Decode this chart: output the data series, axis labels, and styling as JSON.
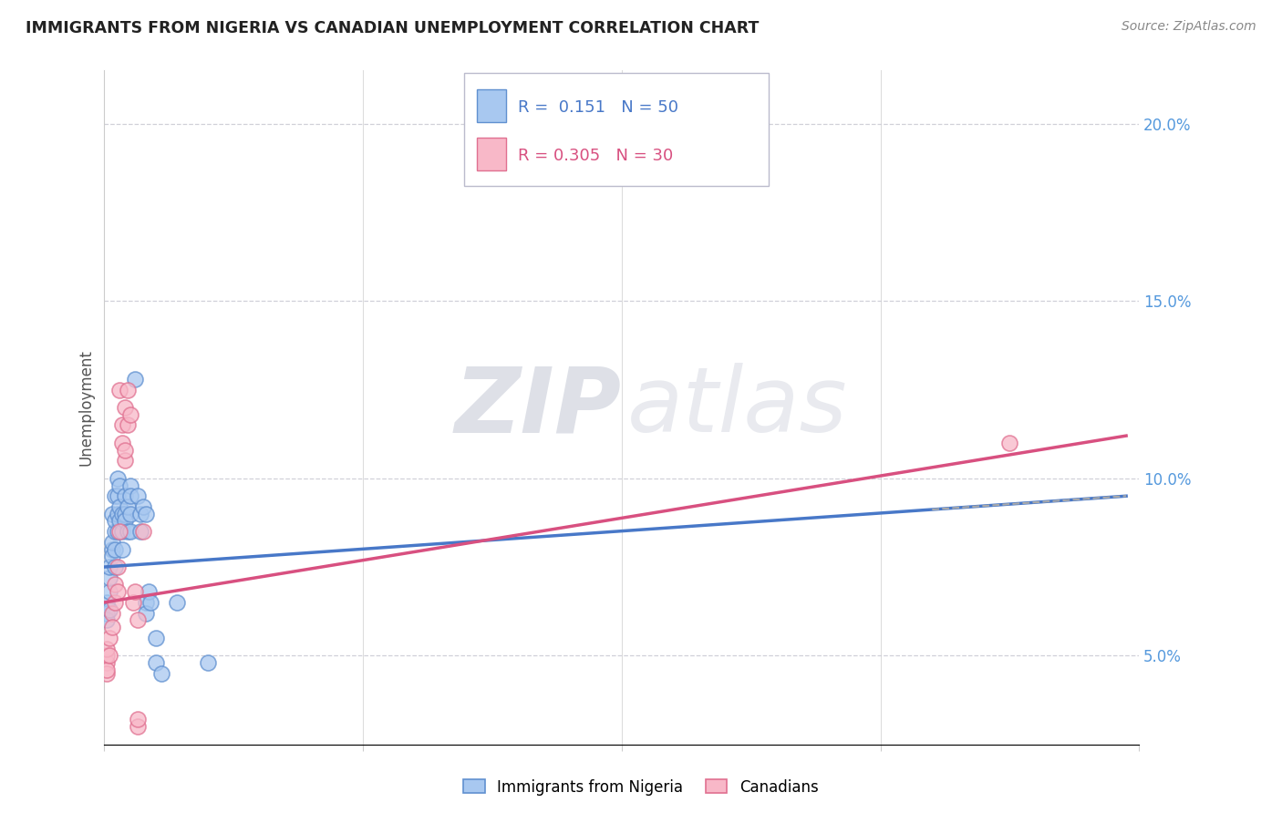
{
  "title": "IMMIGRANTS FROM NIGERIA VS CANADIAN UNEMPLOYMENT CORRELATION CHART",
  "source": "Source: ZipAtlas.com",
  "ylabel": "Unemployment",
  "ylabel_right_ticks": [
    "5.0%",
    "10.0%",
    "15.0%",
    "20.0%"
  ],
  "ylabel_right_vals": [
    5.0,
    10.0,
    15.0,
    20.0
  ],
  "legend_blue_r": "0.151",
  "legend_blue_n": "50",
  "legend_pink_r": "0.305",
  "legend_pink_n": "30",
  "legend_label_blue": "Immigrants from Nigeria",
  "legend_label_pink": "Canadians",
  "blue_fill": "#a8c8f0",
  "pink_fill": "#f8b8c8",
  "blue_edge": "#6090d0",
  "pink_edge": "#e07090",
  "blue_line": "#4878c8",
  "pink_line": "#d85080",
  "blue_scatter": [
    [
      0.001,
      6.5
    ],
    [
      0.001,
      6.2
    ],
    [
      0.001,
      6.0
    ],
    [
      0.002,
      6.8
    ],
    [
      0.002,
      7.2
    ],
    [
      0.002,
      6.3
    ],
    [
      0.002,
      7.5
    ],
    [
      0.003,
      8.0
    ],
    [
      0.003,
      7.8
    ],
    [
      0.003,
      8.2
    ],
    [
      0.003,
      9.0
    ],
    [
      0.004,
      8.5
    ],
    [
      0.004,
      8.0
    ],
    [
      0.004,
      7.5
    ],
    [
      0.004,
      9.5
    ],
    [
      0.004,
      8.8
    ],
    [
      0.005,
      9.0
    ],
    [
      0.005,
      8.5
    ],
    [
      0.005,
      9.5
    ],
    [
      0.005,
      10.0
    ],
    [
      0.006,
      9.2
    ],
    [
      0.006,
      8.8
    ],
    [
      0.006,
      9.8
    ],
    [
      0.007,
      8.5
    ],
    [
      0.007,
      9.0
    ],
    [
      0.007,
      8.0
    ],
    [
      0.008,
      9.5
    ],
    [
      0.008,
      9.0
    ],
    [
      0.008,
      8.8
    ],
    [
      0.009,
      8.5
    ],
    [
      0.009,
      9.2
    ],
    [
      0.01,
      9.0
    ],
    [
      0.01,
      8.5
    ],
    [
      0.01,
      9.8
    ],
    [
      0.01,
      9.5
    ],
    [
      0.012,
      12.8
    ],
    [
      0.013,
      9.5
    ],
    [
      0.014,
      9.0
    ],
    [
      0.014,
      8.5
    ],
    [
      0.015,
      9.2
    ],
    [
      0.016,
      9.0
    ],
    [
      0.016,
      6.5
    ],
    [
      0.016,
      6.2
    ],
    [
      0.017,
      6.8
    ],
    [
      0.018,
      6.5
    ],
    [
      0.02,
      4.8
    ],
    [
      0.02,
      5.5
    ],
    [
      0.022,
      4.5
    ],
    [
      0.028,
      6.5
    ],
    [
      0.04,
      4.8
    ]
  ],
  "pink_scatter": [
    [
      0.001,
      4.8
    ],
    [
      0.001,
      5.0
    ],
    [
      0.001,
      4.5
    ],
    [
      0.001,
      4.6
    ],
    [
      0.001,
      5.2
    ],
    [
      0.002,
      5.5
    ],
    [
      0.002,
      5.0
    ],
    [
      0.003,
      6.2
    ],
    [
      0.003,
      5.8
    ],
    [
      0.004,
      6.5
    ],
    [
      0.004,
      7.0
    ],
    [
      0.005,
      7.5
    ],
    [
      0.005,
      6.8
    ],
    [
      0.006,
      8.5
    ],
    [
      0.006,
      12.5
    ],
    [
      0.007,
      11.5
    ],
    [
      0.007,
      11.0
    ],
    [
      0.008,
      10.5
    ],
    [
      0.008,
      10.8
    ],
    [
      0.008,
      12.0
    ],
    [
      0.009,
      11.5
    ],
    [
      0.009,
      12.5
    ],
    [
      0.01,
      11.8
    ],
    [
      0.011,
      6.5
    ],
    [
      0.012,
      6.8
    ],
    [
      0.013,
      6.0
    ],
    [
      0.013,
      3.0
    ],
    [
      0.013,
      3.2
    ],
    [
      0.015,
      8.5
    ],
    [
      0.35,
      11.0
    ]
  ],
  "xmin": 0.0,
  "xmax": 0.4,
  "ymin": 2.5,
  "ymax": 21.5,
  "background_color": "#ffffff",
  "grid_color": "#d0d0d8",
  "watermark_zip": "ZIP",
  "watermark_atlas": "atlas",
  "watermark_color": "#d8dce8"
}
